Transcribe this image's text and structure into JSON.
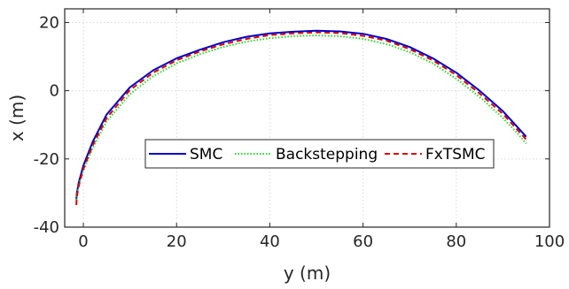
{
  "chart_data": {
    "type": "line",
    "xlabel": "y (m)",
    "ylabel": "x (m)",
    "xlim": [
      -4,
      100
    ],
    "ylim": [
      -40,
      24
    ],
    "xticks": [
      0,
      20,
      40,
      60,
      80,
      100
    ],
    "yticks": [
      -40,
      -20,
      0,
      20
    ],
    "xtick_labels": [
      "0",
      "20",
      "40",
      "60",
      "80",
      "100"
    ],
    "ytick_labels": [
      "-40",
      "-20",
      "0",
      "20"
    ],
    "grid": true,
    "legend_position": "center-bottom",
    "series": [
      {
        "name": "SMC",
        "color": "#0000cc",
        "style": "solid",
        "x": [
          -1.5,
          -1.4,
          -1.0,
          0.0,
          2.0,
          5.0,
          10.0,
          15.0,
          20.0,
          25.0,
          30.0,
          35.0,
          40.0,
          45.0,
          50.0,
          55.0,
          60.0,
          65.0,
          70.0,
          75.0,
          80.0,
          85.0,
          90.0,
          93.0,
          95.0
        ],
        "y": [
          -32.0,
          -30.0,
          -27.0,
          -22.0,
          -15.0,
          -7.0,
          1.0,
          6.0,
          9.5,
          12.0,
          14.2,
          15.8,
          16.8,
          17.3,
          17.6,
          17.4,
          16.7,
          15.2,
          12.8,
          9.5,
          5.3,
          0.0,
          -6.0,
          -10.5,
          -13.5
        ]
      },
      {
        "name": "Backstepping",
        "color": "#22dd22",
        "style": "dotted",
        "x": [
          -1.5,
          -1.4,
          -1.0,
          0.0,
          2.0,
          5.0,
          10.0,
          15.0,
          20.0,
          25.0,
          30.0,
          35.0,
          40.0,
          45.0,
          50.0,
          55.0,
          60.0,
          65.0,
          70.0,
          75.0,
          80.0,
          85.0,
          90.0,
          93.0,
          95.0
        ],
        "y": [
          -32.0,
          -30.5,
          -27.8,
          -23.5,
          -16.8,
          -9.0,
          -1.0,
          4.3,
          8.0,
          10.7,
          12.8,
          14.4,
          15.4,
          16.0,
          16.2,
          16.0,
          15.2,
          13.7,
          11.3,
          8.0,
          3.5,
          -1.8,
          -8.0,
          -12.3,
          -15.5
        ]
      },
      {
        "name": "FxTSMC",
        "color": "#dd0000",
        "style": "dashed",
        "x": [
          -1.5,
          -1.4,
          -1.0,
          0.0,
          2.0,
          5.0,
          10.0,
          15.0,
          20.0,
          25.0,
          30.0,
          35.0,
          40.0,
          45.0,
          50.0,
          55.0,
          60.0,
          65.0,
          70.0,
          75.0,
          80.0,
          85.0,
          90.0,
          93.0,
          95.0
        ],
        "y": [
          -33.5,
          -31.0,
          -28.0,
          -23.0,
          -16.0,
          -8.0,
          0.2,
          5.3,
          8.9,
          11.5,
          13.6,
          15.2,
          16.3,
          16.8,
          17.1,
          16.9,
          16.1,
          14.7,
          12.2,
          8.9,
          4.6,
          -0.8,
          -6.8,
          -11.3,
          -14.3
        ]
      }
    ]
  }
}
